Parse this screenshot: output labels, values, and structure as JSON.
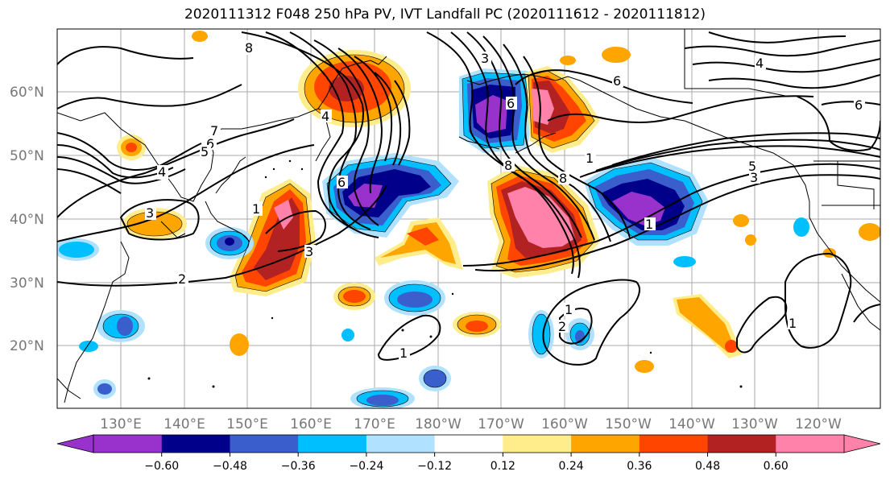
{
  "title": "2020111312 F048 250 hPa PV, IVT Landfall PC (2020111612 - 2020111812)",
  "lat_labels": [
    "60°N",
    "50°N",
    "40°N",
    "30°N",
    "20°N"
  ],
  "lon_labels": [
    "130°E",
    "140°E",
    "150°E",
    "160°E",
    "170°E",
    "180°W",
    "170°W",
    "160°W",
    "150°W",
    "140°W",
    "130°W",
    "120°W"
  ],
  "colorbar": {
    "colors": [
      "#9932CC",
      "#00008B",
      "#3A5FCD",
      "#00BFFF",
      "#B0E2FF",
      "#FFFFFF",
      "#FFEC8B",
      "#FFA500",
      "#FF4500",
      "#B22222",
      "#FF82AB"
    ],
    "ticks": [
      "−0.60",
      "−0.48",
      "−0.36",
      "−0.24",
      "−0.12",
      "0.12",
      "0.24",
      "0.36",
      "0.48",
      "0.60"
    ]
  },
  "contour_labels": [
    "8",
    "7",
    "6",
    "5",
    "4",
    "3",
    "2",
    "1",
    "6",
    "4",
    "3",
    "6",
    "8",
    "3",
    "8",
    "1",
    "3",
    "5",
    "4",
    "1",
    "1",
    "1",
    "1",
    "2",
    "6",
    "6"
  ]
}
